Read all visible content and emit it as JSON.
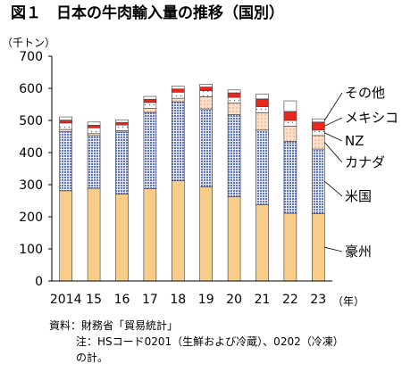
{
  "title": "図１　日本の牛肉輸入量の推移（国別）",
  "unit_label": "（千トン）",
  "year_suffix": "（年）",
  "source": "資料：財務省「貿易統計」",
  "note_line1": "注：HSコード0201（生鮮および冷蔵）、0202（冷凍）",
  "note_line2": "の計。",
  "colors": {
    "豪州": "#f8cd8a",
    "米国": "#5f75c8",
    "カナダ": "#ffdfc8",
    "NZ": "#ffffff",
    "メキシコ": "#e8281e",
    "その他": "#ffffff"
  },
  "chart_data": {
    "type": "bar",
    "stacked": true,
    "categories": [
      "2014",
      "15",
      "16",
      "17",
      "18",
      "19",
      "20",
      "21",
      "22",
      "23"
    ],
    "ylim": [
      0,
      700
    ],
    "yticks": [
      0,
      100,
      200,
      300,
      400,
      500,
      600,
      700
    ],
    "ylabel": "（千トン）",
    "xlabel": "（年）",
    "series": [
      {
        "name": "豪州",
        "values": [
          281,
          289,
          271,
          288,
          312,
          293,
          262,
          238,
          211,
          210
        ]
      },
      {
        "name": "米国",
        "values": [
          184,
          164,
          193,
          237,
          246,
          243,
          256,
          232,
          224,
          201
        ]
      },
      {
        "name": "カナダ",
        "values": [
          7,
          6,
          4,
          13,
          11,
          38,
          36,
          54,
          47,
          42
        ]
      },
      {
        "name": "NZ",
        "values": [
          20,
          18,
          18,
          18,
          19,
          19,
          18,
          19,
          18,
          17
        ]
      },
      {
        "name": "メキシコ",
        "values": [
          9,
          8,
          8,
          10,
          10,
          11,
          14,
          24,
          28,
          25
        ]
      },
      {
        "name": "その他",
        "values": [
          10,
          10,
          8,
          9,
          9,
          9,
          9,
          15,
          33,
          10
        ]
      }
    ],
    "legend_placement": "right (labels beside last bar)"
  }
}
